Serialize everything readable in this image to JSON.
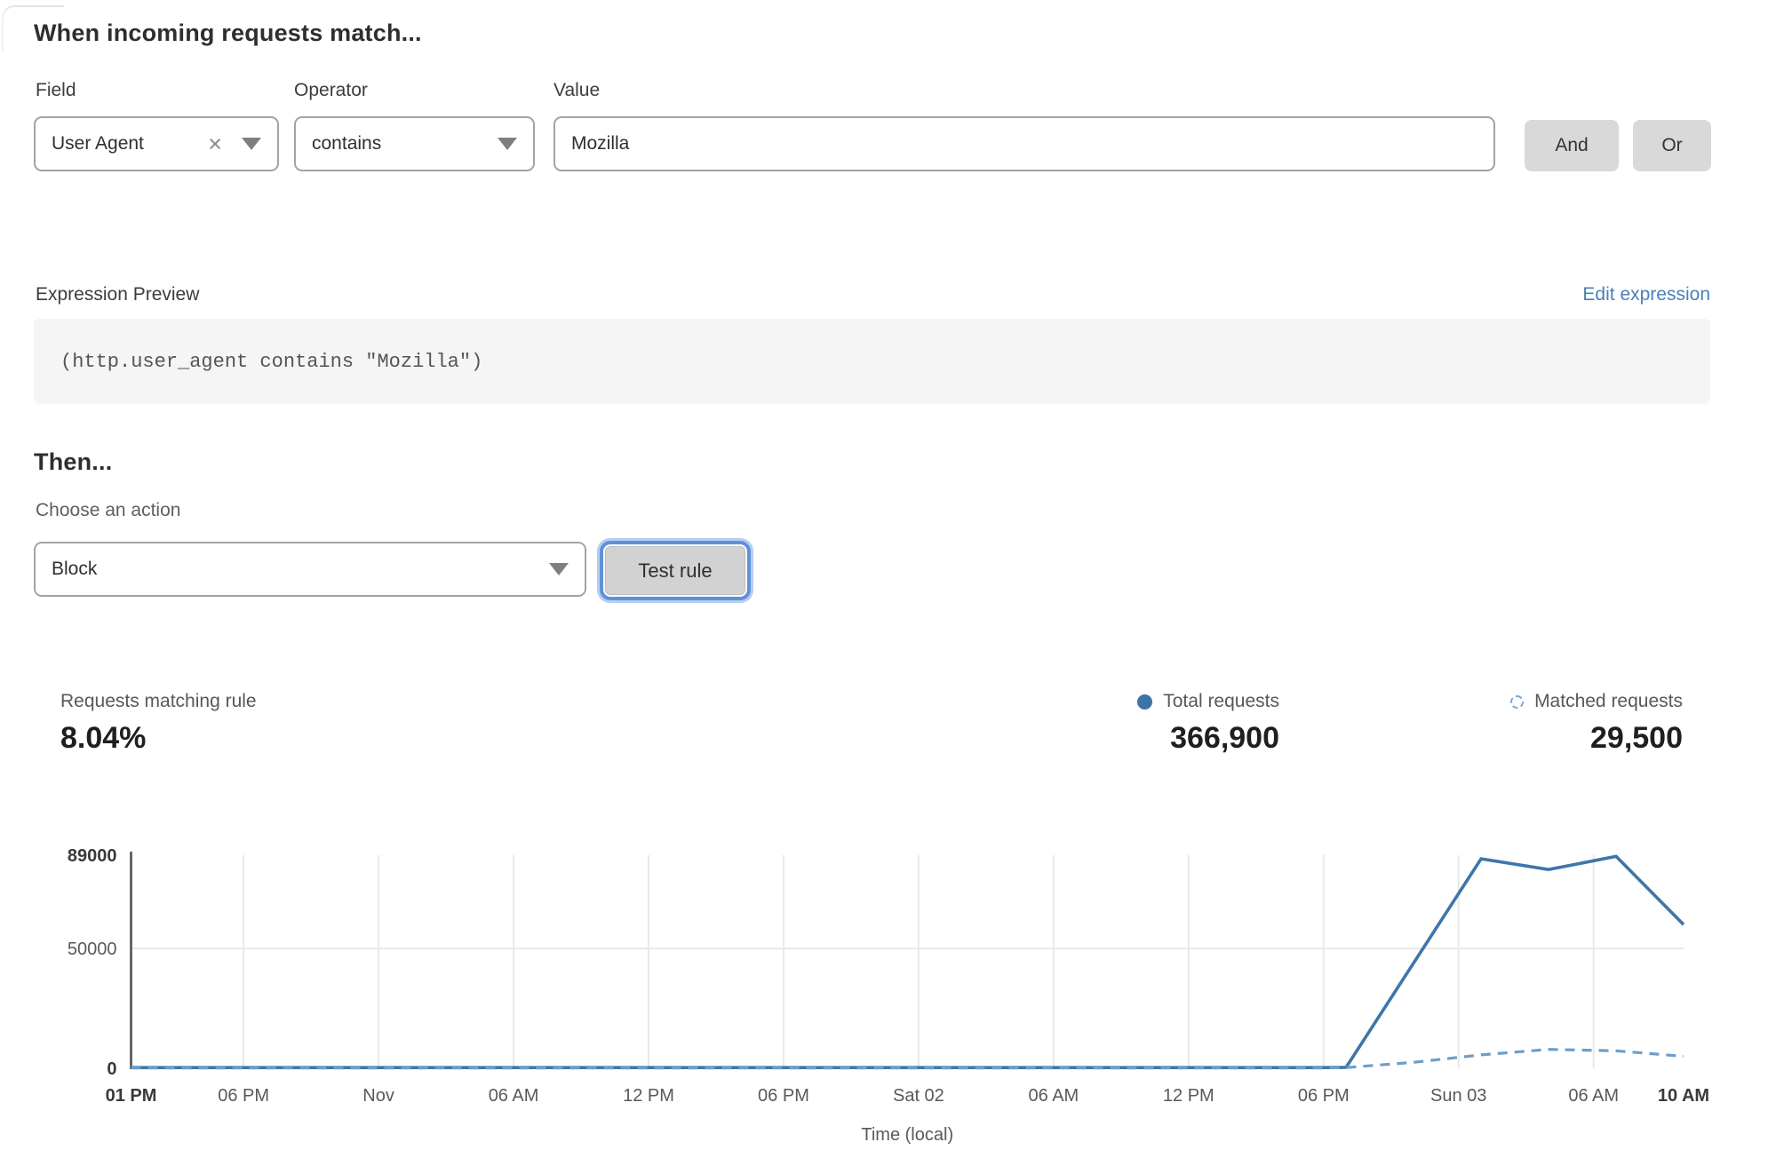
{
  "match_section": {
    "title": "When incoming requests match...",
    "field": {
      "label": "Field",
      "value": "User Agent"
    },
    "operator": {
      "label": "Operator",
      "value": "contains"
    },
    "value": {
      "label": "Value",
      "value": "Mozilla"
    },
    "and_label": "And",
    "or_label": "Or"
  },
  "expression": {
    "label": "Expression Preview",
    "edit_link": "Edit expression",
    "code": "(http.user_agent contains \"Mozilla\")"
  },
  "then_section": {
    "title": "Then...",
    "action_label": "Choose an action",
    "action_value": "Block",
    "test_button": "Test rule"
  },
  "stats": {
    "matching_label": "Requests matching rule",
    "matching_value": "8.04%",
    "total_label": "Total requests",
    "total_value": "366,900",
    "matched_label": "Matched requests",
    "matched_value": "29,500"
  },
  "icons": {
    "clear": "×"
  },
  "colors": {
    "link_blue": "#4a80b8",
    "series_solid": "#3f76a8",
    "series_dashed": "#6d9ec9",
    "focus_ring": "#5e91da",
    "axis": "#4d4d4d",
    "gridline": "#e9e9e9",
    "tick_text": "#595959",
    "tick_text_bold": "#3a3a3a"
  },
  "chart_data": {
    "type": "line",
    "title": "",
    "xlabel": "Time (local)",
    "ylabel": "",
    "ylim": [
      0,
      89000
    ],
    "x_range_hours": [
      0,
      69
    ],
    "grid": true,
    "legend_position": "top-right",
    "yticks": [
      {
        "value": 0,
        "label": "0",
        "bold": true
      },
      {
        "value": 50000,
        "label": "50000",
        "bold": false
      },
      {
        "value": 89000,
        "label": "89000",
        "bold": true
      }
    ],
    "xticks": [
      {
        "hour": 0,
        "label": "01 PM",
        "bold": true,
        "grid": false
      },
      {
        "hour": 5,
        "label": "06 PM",
        "bold": false,
        "grid": true
      },
      {
        "hour": 11,
        "label": "Nov",
        "bold": false,
        "grid": true
      },
      {
        "hour": 17,
        "label": "06 AM",
        "bold": false,
        "grid": true
      },
      {
        "hour": 23,
        "label": "12 PM",
        "bold": false,
        "grid": true
      },
      {
        "hour": 29,
        "label": "06 PM",
        "bold": false,
        "grid": true
      },
      {
        "hour": 35,
        "label": "Sat 02",
        "bold": false,
        "grid": true
      },
      {
        "hour": 41,
        "label": "06 AM",
        "bold": false,
        "grid": true
      },
      {
        "hour": 47,
        "label": "12 PM",
        "bold": false,
        "grid": true
      },
      {
        "hour": 53,
        "label": "06 PM",
        "bold": false,
        "grid": true
      },
      {
        "hour": 59,
        "label": "Sun 03",
        "bold": false,
        "grid": true
      },
      {
        "hour": 65,
        "label": "06 AM",
        "bold": false,
        "grid": true
      },
      {
        "hour": 69,
        "label": "10 AM",
        "bold": true,
        "grid": false
      }
    ],
    "series": [
      {
        "name": "Total requests",
        "style": "solid",
        "color": "#3f76a8",
        "points": [
          [
            0,
            300
          ],
          [
            5,
            300
          ],
          [
            11,
            300
          ],
          [
            17,
            300
          ],
          [
            23,
            300
          ],
          [
            29,
            300
          ],
          [
            35,
            300
          ],
          [
            41,
            300
          ],
          [
            47,
            300
          ],
          [
            53,
            300
          ],
          [
            54,
            400
          ],
          [
            60,
            87500
          ],
          [
            63,
            83000
          ],
          [
            66,
            88500
          ],
          [
            69,
            60000
          ]
        ]
      },
      {
        "name": "Matched requests",
        "style": "dashed",
        "color": "#6d9ec9",
        "points": [
          [
            0,
            150
          ],
          [
            5,
            150
          ],
          [
            11,
            150
          ],
          [
            17,
            150
          ],
          [
            23,
            150
          ],
          [
            29,
            150
          ],
          [
            35,
            150
          ],
          [
            41,
            150
          ],
          [
            47,
            150
          ],
          [
            53,
            150
          ],
          [
            54,
            300
          ],
          [
            57,
            2500
          ],
          [
            60,
            5600
          ],
          [
            63,
            7900
          ],
          [
            66,
            7300
          ],
          [
            69,
            5000
          ]
        ]
      }
    ]
  }
}
